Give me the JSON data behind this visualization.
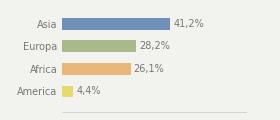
{
  "categories": [
    "Asia",
    "Europa",
    "Africa",
    "America"
  ],
  "values": [
    41.2,
    28.2,
    26.1,
    4.4
  ],
  "labels": [
    "41,2%",
    "28,2%",
    "26,1%",
    "4,4%"
  ],
  "bar_colors": [
    "#7090b8",
    "#a8ba8a",
    "#e8b87a",
    "#e8d870"
  ],
  "background_color": "#f2f2ee",
  "xlim": [
    0,
    70
  ],
  "bar_height": 0.52,
  "label_fontsize": 7.0,
  "tick_fontsize": 7.0,
  "text_color": "#777777"
}
